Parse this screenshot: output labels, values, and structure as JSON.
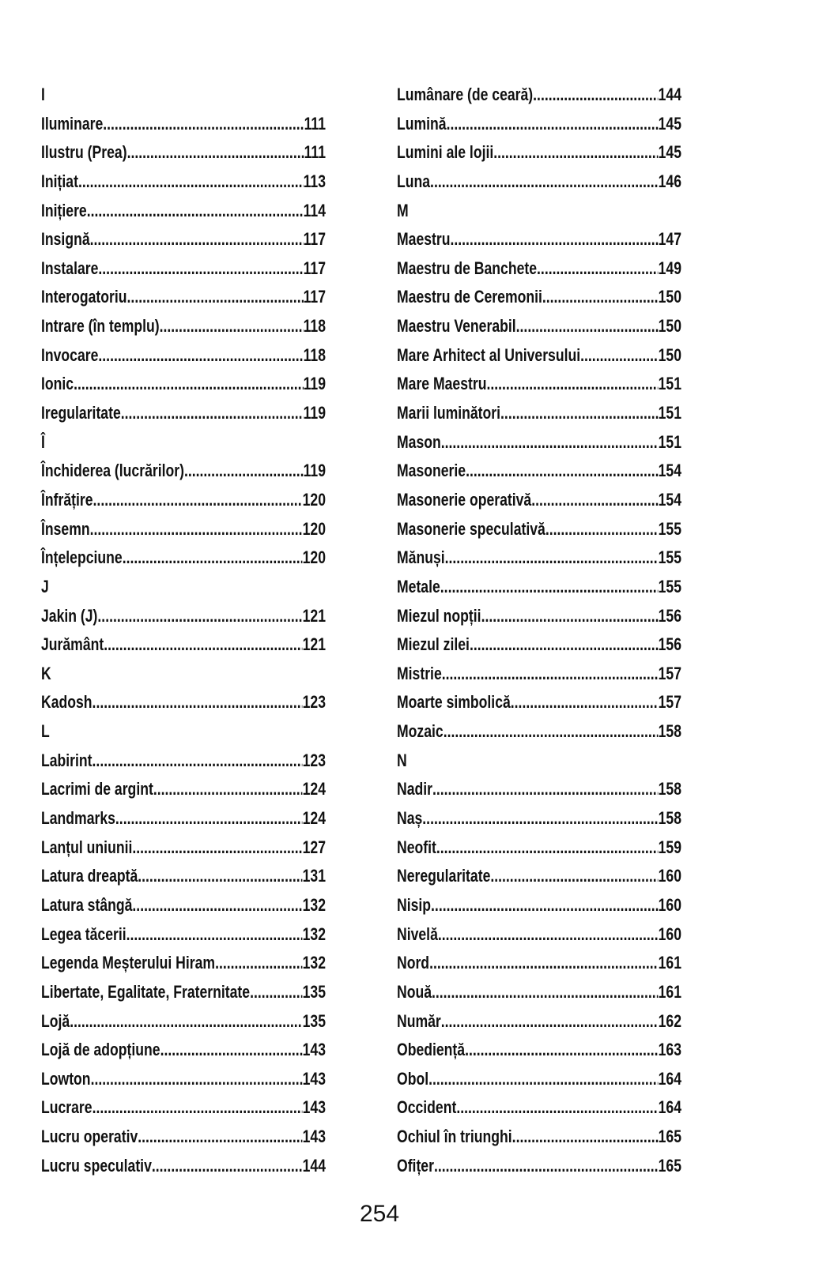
{
  "left": [
    {
      "letter": "I"
    },
    {
      "term": "Iluminare",
      "page": "111"
    },
    {
      "term": "Ilustru (Prea)",
      "page": "111"
    },
    {
      "term": "Inițiat",
      "page": "113"
    },
    {
      "term": "Inițiere",
      "page": "114"
    },
    {
      "term": "Insignă",
      "page": "117"
    },
    {
      "term": "Instalare",
      "page": "117"
    },
    {
      "term": "Interogatoriu",
      "page": "117"
    },
    {
      "term": "Intrare (în templu)",
      "page": "118"
    },
    {
      "term": "Invocare",
      "page": "118"
    },
    {
      "term": "Ionic",
      "page": "119"
    },
    {
      "term": "Iregularitate",
      "page": "119"
    },
    {
      "letter": "Î"
    },
    {
      "term": "Închiderea (lucrărilor)",
      "page": "119"
    },
    {
      "term": "Înfrățire",
      "page": "120"
    },
    {
      "term": "Însemn",
      "page": "120"
    },
    {
      "term": "Înțelepciune",
      "page": "120"
    },
    {
      "letter": "J"
    },
    {
      "term": "Jakin (J)",
      "page": "121"
    },
    {
      "term": "Jurământ",
      "page": "121"
    },
    {
      "letter": "K"
    },
    {
      "term": "Kadosh",
      "page": "123"
    },
    {
      "letter": "L"
    },
    {
      "term": "Labirint",
      "page": "123"
    },
    {
      "term": "Lacrimi de argint",
      "page": "124"
    },
    {
      "term": "Landmarks",
      "page": "124"
    },
    {
      "term": "Lanțul uniunii",
      "page": "127"
    },
    {
      "term": "Latura dreaptă",
      "page": "131"
    },
    {
      "term": "Latura stângă",
      "page": "132"
    },
    {
      "term": "Legea tăcerii",
      "page": "132"
    },
    {
      "term": "Legenda Meșterului Hiram",
      "page": "132"
    },
    {
      "term": "Libertate, Egalitate, Fraternitate",
      "page": "135"
    },
    {
      "term": "Lojă",
      "page": "135"
    },
    {
      "term": "Lojă de adopțiune",
      "page": "143"
    },
    {
      "term": "Lowton",
      "page": "143"
    },
    {
      "term": "Lucrare",
      "page": "143"
    },
    {
      "term": "Lucru operativ",
      "page": "143"
    },
    {
      "term": "Lucru speculativ",
      "page": "144"
    }
  ],
  "right": [
    {
      "term": "Lumânare (de ceară)",
      "page": "144"
    },
    {
      "term": "Lumină",
      "page": "145"
    },
    {
      "term": "Lumini ale lojii",
      "page": "145"
    },
    {
      "term": "Luna",
      "page": "146"
    },
    {
      "letter": "M"
    },
    {
      "term": "Maestru",
      "page": "147"
    },
    {
      "term": "Maestru de Banchete",
      "page": "149"
    },
    {
      "term": "Maestru de Ceremonii",
      "page": "150"
    },
    {
      "term": "Maestru Venerabil",
      "page": "150"
    },
    {
      "term": "Mare Arhitect al Universului",
      "page": "150"
    },
    {
      "term": "Mare Maestru",
      "page": "151"
    },
    {
      "term": "Marii luminători",
      "page": "151"
    },
    {
      "term": "Mason",
      "page": "151"
    },
    {
      "term": "Masonerie",
      "page": "154"
    },
    {
      "term": "Masonerie operativă",
      "page": "154"
    },
    {
      "term": "Masonerie speculativă",
      "page": "155"
    },
    {
      "term": "Mănuși",
      "page": "155"
    },
    {
      "term": "Metale",
      "page": "155"
    },
    {
      "term": "Miezul nopții",
      "page": "156"
    },
    {
      "term": "Miezul zilei",
      "page": "156"
    },
    {
      "term": "Mistrie",
      "page": "157"
    },
    {
      "term": "Moarte simbolică",
      "page": "157"
    },
    {
      "term": "Mozaic",
      "page": "158"
    },
    {
      "letter": "N"
    },
    {
      "term": "Nadir",
      "page": "158"
    },
    {
      "term": "Naș",
      "page": "158"
    },
    {
      "term": "Neofit",
      "page": "159"
    },
    {
      "term": "Neregularitate",
      "page": "160"
    },
    {
      "term": "Nisip",
      "page": "160"
    },
    {
      "term": "Nivelă",
      "page": "160"
    },
    {
      "term": "Nord",
      "page": "161"
    },
    {
      "term": "Nouă",
      "page": "161"
    },
    {
      "term": "Număr",
      "page": "162"
    },
    {
      "term": "Obediență",
      "page": "163"
    },
    {
      "term": "Obol",
      "page": "164"
    },
    {
      "term": "Occident",
      "page": "164"
    },
    {
      "term": "Ochiul în triunghi",
      "page": "165"
    },
    {
      "term": "Ofițer",
      "page": "165"
    }
  ],
  "page_number": "254"
}
